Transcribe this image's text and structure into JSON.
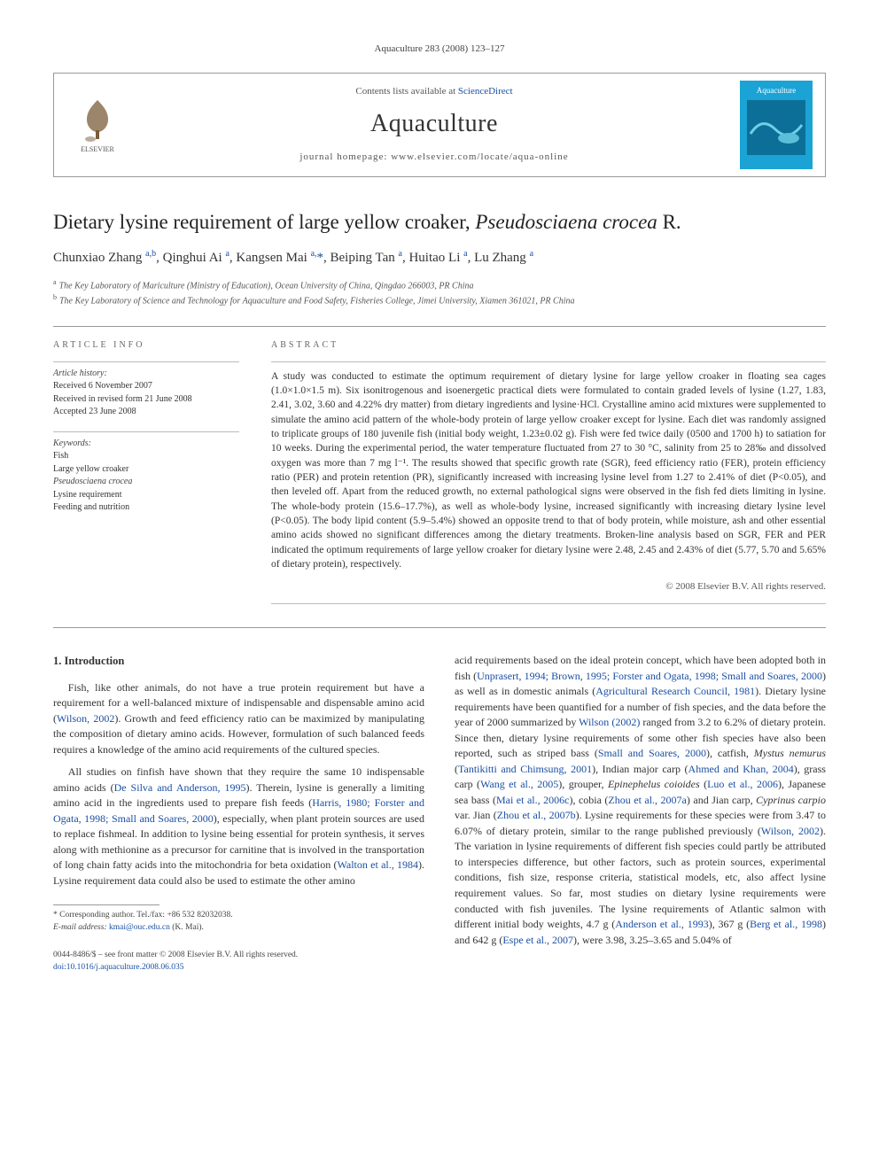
{
  "journal_ref": "Aquaculture 283 (2008) 123–127",
  "header": {
    "contents_prefix": "Contents lists available at ",
    "contents_link": "ScienceDirect",
    "journal_title": "Aquaculture",
    "homepage": "journal homepage: www.elsevier.com/locate/aqua-online",
    "elsevier_label": "ELSEVIER",
    "cover_label": "Aquaculture"
  },
  "article": {
    "title_plain": "Dietary lysine requirement of large yellow croaker, ",
    "title_italic": "Pseudosciaena crocea",
    "title_suffix": " R.",
    "authors_html": "Chunxiao Zhang <sup>a,b</sup>, Qinghui Ai <sup>a</sup>, Kangsen Mai <sup>a,</sup><span class='star'>*</span>, Beiping Tan <sup>a</sup>, Huitao Li <sup>a</sup>, Lu Zhang <sup>a</sup>",
    "affil_a": "The Key Laboratory of Mariculture (Ministry of Education), Ocean University of China, Qingdao 266003, PR China",
    "affil_b": "The Key Laboratory of Science and Technology for Aquaculture and Food Safety, Fisheries College, Jimei University, Xiamen 361021, PR China"
  },
  "info": {
    "article_info_label": "ARTICLE INFO",
    "abstract_label": "ABSTRACT",
    "history_label": "Article history:",
    "history_lines": [
      "Received 6 November 2007",
      "Received in revised form 21 June 2008",
      "Accepted 23 June 2008"
    ],
    "keywords_label": "Keywords:",
    "keywords": [
      "Fish",
      "Large yellow croaker",
      "Pseudosciaena crocea",
      "Lysine requirement",
      "Feeding and nutrition"
    ]
  },
  "abstract": {
    "text": "A study was conducted to estimate the optimum requirement of dietary lysine for large yellow croaker in floating sea cages (1.0×1.0×1.5 m). Six isonitrogenous and isoenergetic practical diets were formulated to contain graded levels of lysine (1.27, 1.83, 2.41, 3.02, 3.60 and 4.22% dry matter) from dietary ingredients and lysine·HCl. Crystalline amino acid mixtures were supplemented to simulate the amino acid pattern of the whole-body protein of large yellow croaker except for lysine. Each diet was randomly assigned to triplicate groups of 180 juvenile fish (initial body weight, 1.23±0.02 g). Fish were fed twice daily (0500 and 1700 h) to satiation for 10 weeks. During the experimental period, the water temperature fluctuated from 27 to 30 °C, salinity from 25 to 28‰ and dissolved oxygen was more than 7 mg l⁻¹. The results showed that specific growth rate (SGR), feed efficiency ratio (FER), protein efficiency ratio (PER) and protein retention (PR), significantly increased with increasing lysine level from 1.27 to 2.41% of diet (P<0.05), and then leveled off. Apart from the reduced growth, no external pathological signs were observed in the fish fed diets limiting in lysine. The whole-body protein (15.6–17.7%), as well as whole-body lysine, increased significantly with increasing dietary lysine level (P<0.05). The body lipid content (5.9–5.4%) showed an opposite trend to that of body protein, while moisture, ash and other essential amino acids showed no significant differences among the dietary treatments. Broken-line analysis based on SGR, FER and PER indicated the optimum requirements of large yellow croaker for dietary lysine were 2.48, 2.45 and 2.43% of diet (5.77, 5.70 and 5.65% of dietary protein), respectively.",
    "copyright": "© 2008 Elsevier B.V. All rights reserved."
  },
  "body": {
    "heading": "1. Introduction",
    "left_paras": [
      "Fish, like other animals, do not have a true protein requirement but have a requirement for a well-balanced mixture of indispensable and dispensable amino acid (<a>Wilson, 2002</a>). Growth and feed efficiency ratio can be maximized by manipulating the composition of dietary amino acids. However, formulation of such balanced feeds requires a knowledge of the amino acid requirements of the cultured species.",
      "All studies on finfish have shown that they require the same 10 indispensable amino acids (<a>De Silva and Anderson, 1995</a>). Therein, lysine is generally a limiting amino acid in the ingredients used to prepare fish feeds (<a>Harris, 1980; Forster and Ogata, 1998; Small and Soares, 2000</a>), especially, when plant protein sources are used to replace fishmeal. In addition to lysine being essential for protein synthesis, it serves along with methionine as a precursor for carnitine that is involved in the transportation of long chain fatty acids into the mitochondria for beta oxidation (<a>Walton et al., 1984</a>). Lysine requirement data could also be used to estimate the other amino"
    ],
    "right_paras": [
      "acid requirements based on the ideal protein concept, which have been adopted both in fish (<a>Unprasert, 1994; Brown, 1995; Forster and Ogata, 1998; Small and Soares, 2000</a>) as well as in domestic animals (<a>Agricultural Research Council, 1981</a>). Dietary lysine requirements have been quantified for a number of fish species, and the data before the year of 2000 summarized by <a>Wilson (2002)</a> ranged from 3.2 to 6.2% of dietary protein. Since then, dietary lysine requirements of some other fish species have also been reported, such as striped bass (<a>Small and Soares, 2000</a>), catfish, <span class='ital'>Mystus nemurus</span> (<a>Tantikitti and Chimsung, 2001</a>), Indian major carp (<a>Ahmed and Khan, 2004</a>), grass carp (<a>Wang et al., 2005</a>), grouper, <span class='ital'>Epinephelus coioides</span> (<a>Luo et al., 2006</a>), Japanese sea bass (<a>Mai et al., 2006c</a>), cobia (<a>Zhou et al., 2007a</a>) and Jian carp, <span class='ital'>Cyprinus carpio</span> var. Jian (<a>Zhou et al., 2007b</a>). Lysine requirements for these species were from 3.47 to 6.07% of dietary protein, similar to the range published previously (<a>Wilson, 2002</a>). The variation in lysine requirements of different fish species could partly be attributed to interspecies difference, but other factors, such as protein sources, experimental conditions, fish size, response criteria, statistical models, etc, also affect lysine requirement values. So far, most studies on dietary lysine requirements were conducted with fish juveniles. The lysine requirements of Atlantic salmon with different initial body weights, 4.7 g (<a>Anderson et al., 1993</a>), 367 g (<a>Berg et al., 1998</a>) and 642 g (<a>Espe et al., 2007</a>), were 3.98, 3.25–3.65 and 5.04% of"
    ]
  },
  "footnote": {
    "corr": "* Corresponding author. Tel./fax: +86 532 82032038.",
    "email_label": "E-mail address:",
    "email": "kmai@ouc.edu.cn",
    "email_who": "(K. Mai)."
  },
  "footer": {
    "line1": "0044-8486/$ – see front matter © 2008 Elsevier B.V. All rights reserved.",
    "doi": "doi:10.1016/j.aquaculture.2008.06.035"
  },
  "colors": {
    "link": "#1a4fa3",
    "text": "#333333",
    "rule": "#999999",
    "cover_bg": "#1aa3d4",
    "cover_accent": "#ffffff",
    "tree": "#7a5c3a"
  }
}
